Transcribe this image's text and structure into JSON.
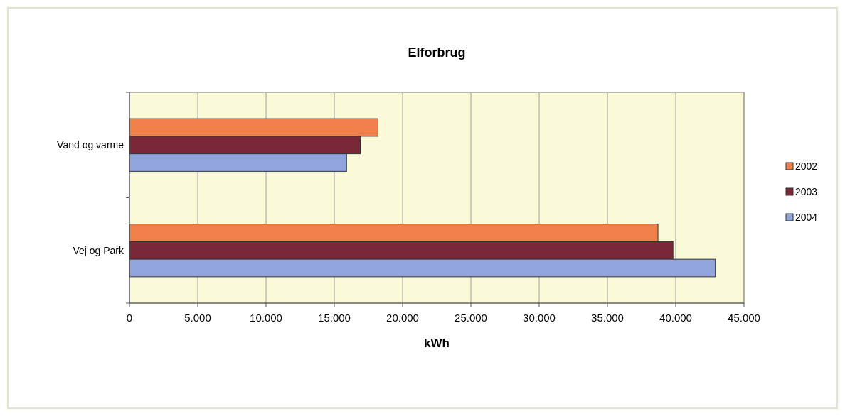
{
  "chart_data": {
    "type": "bar",
    "orientation": "horizontal",
    "title": "Elforbrug",
    "xlabel": "kWh",
    "categories": [
      "Vand og varme",
      "Vej og Park"
    ],
    "series": [
      {
        "name": "2002",
        "color": "#f0804a",
        "values": [
          18200,
          38700
        ]
      },
      {
        "name": "2003",
        "color": "#7a2838",
        "values": [
          16900,
          39800
        ]
      },
      {
        "name": "2004",
        "color": "#92a4dc",
        "values": [
          15900,
          42900
        ]
      }
    ],
    "xlim": [
      0,
      45000
    ],
    "xticks": [
      0,
      {
        "value": 5000,
        "label": "5.000"
      },
      {
        "value": 10000,
        "label": "10.000"
      },
      {
        "value": 15000,
        "label": "15.000"
      },
      {
        "value": 20000,
        "label": "20.000"
      },
      {
        "value": 25000,
        "label": "25.000"
      },
      {
        "value": 30000,
        "label": "30.000"
      },
      {
        "value": 35000,
        "label": "35.000"
      },
      {
        "value": 40000,
        "label": "40.000"
      },
      {
        "value": 45000,
        "label": "45.000"
      }
    ],
    "grid": "x",
    "legend": "right"
  }
}
